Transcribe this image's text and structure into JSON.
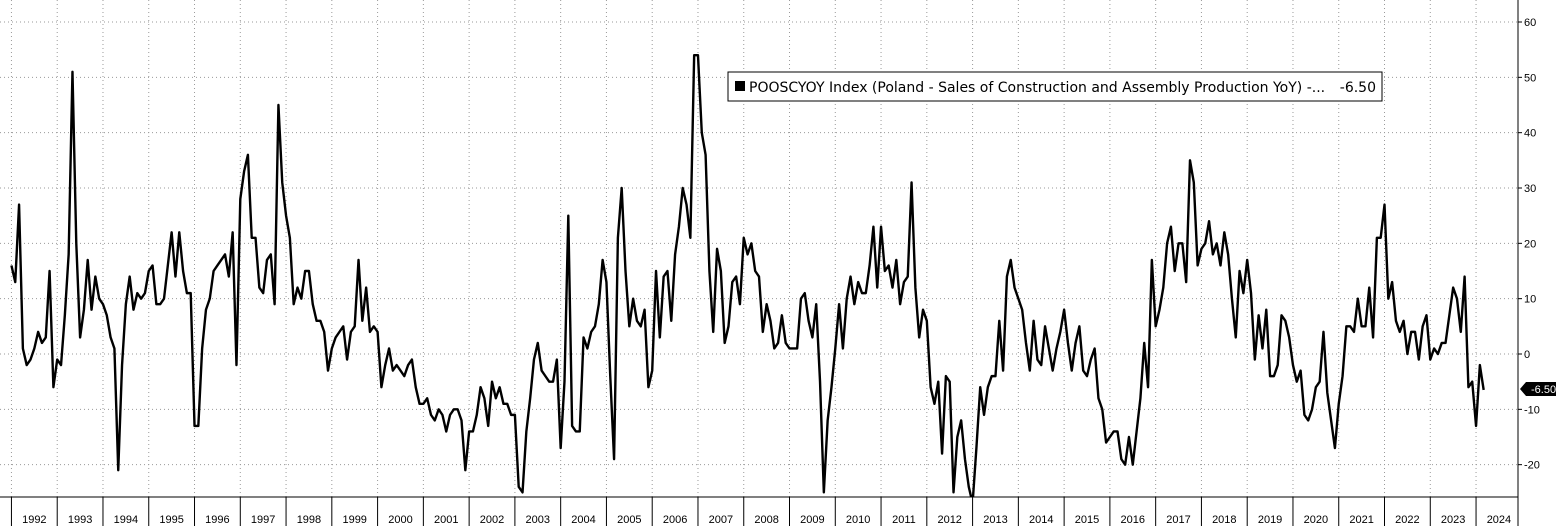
{
  "chart_data": {
    "type": "line",
    "title": "",
    "xlabel": "",
    "ylabel": "",
    "x_start": "1992-01",
    "frequency": "monthly",
    "xlim": [
      "1991-10",
      "2024-12"
    ],
    "ylim": [
      -26,
      63
    ],
    "y_ticks": [
      60,
      50,
      40,
      30,
      20,
      10,
      0,
      -10,
      -20
    ],
    "x_tick_labels": [
      "1992",
      "1993",
      "1994",
      "1995",
      "1996",
      "1997",
      "1998",
      "1999",
      "2000",
      "2001",
      "2002",
      "2003",
      "2004",
      "2005",
      "2006",
      "2007",
      "2008",
      "2009",
      "2010",
      "2011",
      "2012",
      "2013",
      "2014",
      "2015",
      "2016",
      "2017",
      "2018",
      "2019",
      "2020",
      "2021",
      "2022",
      "2023",
      "2024"
    ],
    "grid": true,
    "legend_position": "top-center",
    "series": [
      {
        "name": "POOSCYOY Index (Poland - Sales of Construction and Assembly Production YoY) -...",
        "last_value_label": "-6.50",
        "color": "#000000",
        "values": [
          16,
          13,
          27,
          1,
          -2,
          -1,
          1,
          4,
          2,
          3,
          15,
          -6,
          -1,
          -2,
          7,
          18,
          51,
          20,
          3,
          8,
          17,
          8,
          14,
          10,
          9,
          7,
          3,
          1,
          -21,
          -2,
          9,
          14,
          8,
          11,
          10,
          11,
          15,
          16,
          9,
          9,
          10,
          16,
          22,
          14,
          22,
          15,
          11,
          11,
          -13,
          -13,
          1,
          8,
          10,
          15,
          16,
          17,
          18,
          14,
          22,
          -2,
          28,
          33,
          36,
          21,
          21,
          12,
          11,
          17,
          18,
          9,
          45,
          31,
          25,
          21,
          9,
          12,
          10,
          15,
          15,
          9,
          6,
          6,
          4,
          -3,
          1,
          3,
          4,
          5,
          -1,
          4,
          5,
          17,
          6,
          12,
          4,
          5,
          4,
          -6,
          -2,
          1,
          -3,
          -2,
          -3,
          -4,
          -2,
          -1,
          -6,
          -9,
          -9,
          -8,
          -11,
          -12,
          -10,
          -11,
          -14,
          -11,
          -10,
          -10,
          -12,
          -21,
          -14,
          -14,
          -11,
          -6,
          -8,
          -13,
          -5,
          -8,
          -6,
          -9,
          -9,
          -11,
          -11,
          -24,
          -25,
          -14,
          -8,
          -1,
          2,
          -3,
          -4,
          -5,
          -5,
          -1,
          -17,
          -5,
          25,
          -13,
          -14,
          -14,
          3,
          1,
          4,
          5,
          9,
          17,
          13,
          -4,
          -19,
          21,
          30,
          15,
          5,
          10,
          6,
          5,
          8,
          -6,
          -3,
          15,
          3,
          14,
          15,
          6,
          18,
          23,
          30,
          27,
          21,
          54,
          54,
          40,
          36,
          15,
          4,
          19,
          15,
          2,
          5,
          13,
          14,
          9,
          21,
          18,
          20,
          15,
          14,
          4,
          9,
          6,
          1,
          2,
          7,
          2,
          1,
          1,
          1,
          10,
          11,
          6,
          3,
          9,
          -5,
          -25,
          -12,
          -6,
          1,
          9,
          1,
          10,
          14,
          9,
          13,
          11,
          11,
          16,
          23,
          12,
          23,
          15,
          16,
          12,
          17,
          9,
          13,
          14,
          31,
          12,
          3,
          8,
          6,
          -6,
          -9,
          -5,
          -18,
          -4,
          -5,
          -25,
          -15,
          -12,
          -19,
          -24,
          -27,
          -17,
          -6,
          -11,
          -6,
          -4,
          -4,
          6,
          -3,
          14,
          17,
          12,
          10,
          8,
          2,
          -3,
          6,
          -1,
          -2,
          5,
          1,
          -3,
          1,
          4,
          8,
          2,
          -3,
          2,
          5,
          -3,
          -4,
          -1,
          1,
          -8,
          -10,
          -16,
          -15,
          -14,
          -14,
          -19,
          -20,
          -15,
          -20,
          -14,
          -8,
          2,
          -6,
          17,
          5,
          8,
          12,
          20,
          23,
          15,
          20,
          20,
          13,
          35,
          31,
          16,
          19,
          20,
          24,
          18,
          20,
          16,
          22,
          18,
          10,
          3,
          15,
          11,
          17,
          11,
          -1,
          7,
          1,
          8,
          -4,
          -4,
          -2,
          7,
          6,
          3,
          -2,
          -5,
          -3,
          -11,
          -12,
          -10,
          -6,
          -5,
          4,
          -7,
          -12,
          -17,
          -9,
          -4,
          5,
          5,
          4,
          10,
          5,
          5,
          12,
          3,
          21,
          21,
          27,
          10,
          13,
          6,
          4,
          6,
          0,
          4,
          4,
          -1,
          5,
          7,
          -1,
          1,
          0,
          2,
          2,
          7,
          12,
          10,
          4,
          14,
          -6,
          -5,
          -13,
          -2,
          -6.5
        ]
      }
    ]
  }
}
